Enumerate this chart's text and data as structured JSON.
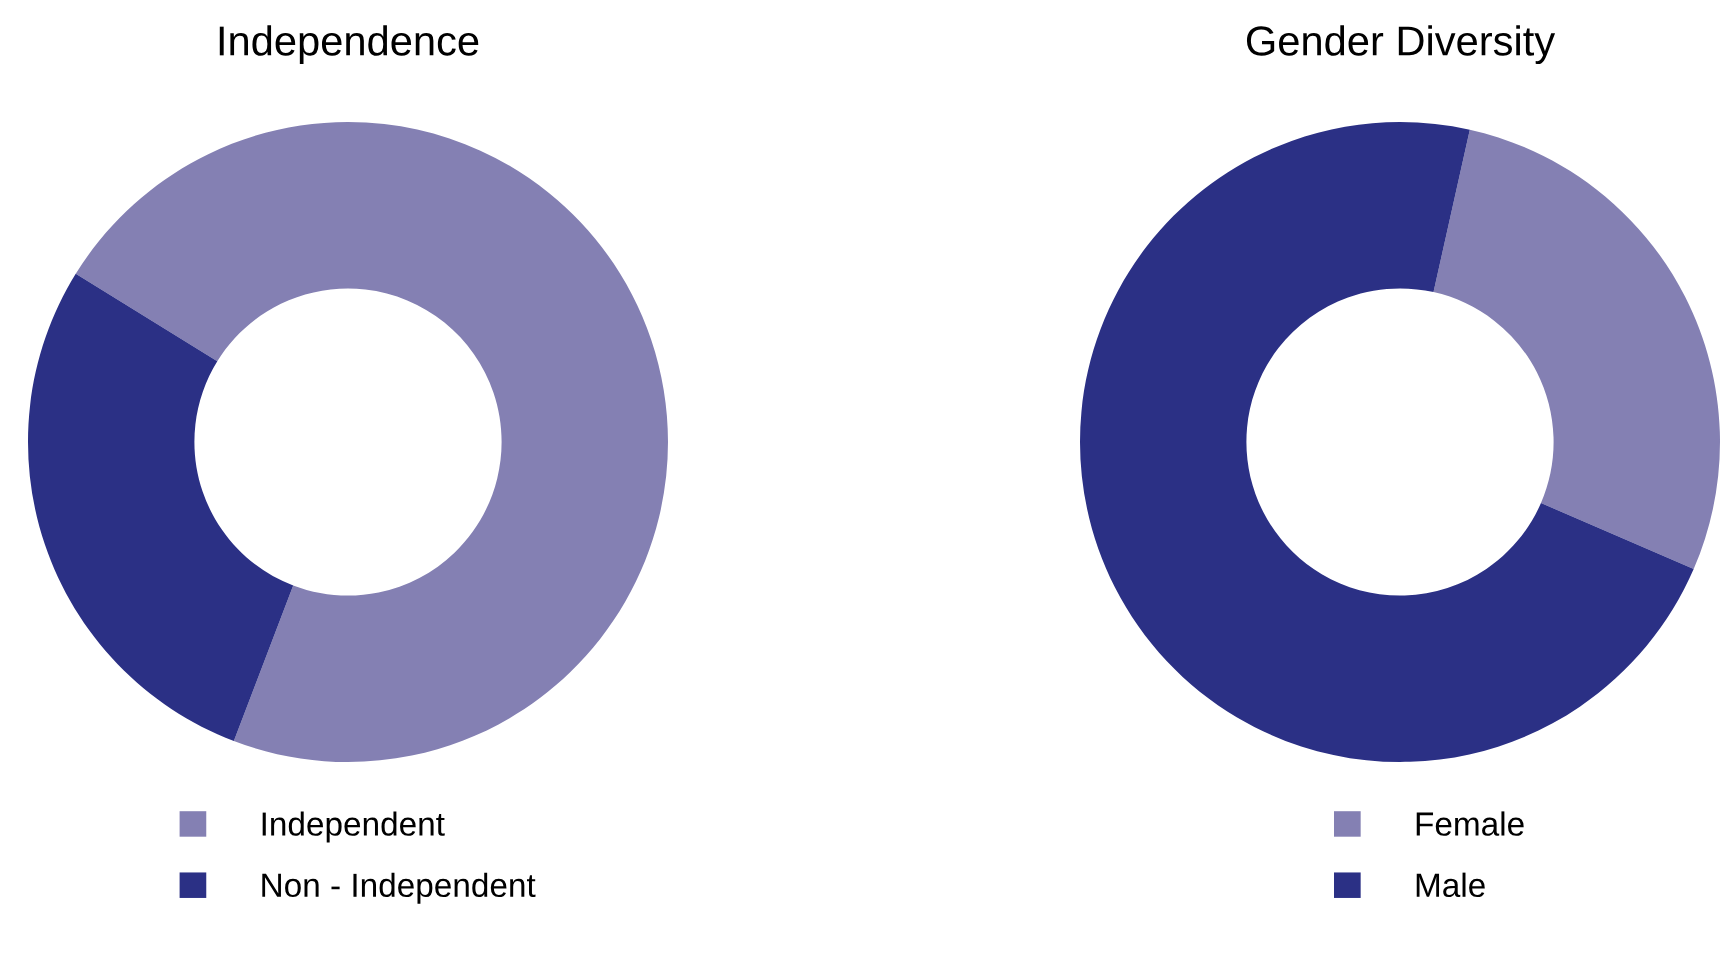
{
  "chart_data": [
    {
      "type": "donut",
      "title": "Independence",
      "categories": [
        "Independent",
        "Non - Independent"
      ],
      "values": [
        72,
        28
      ],
      "colors": [
        "#8480b3",
        "#2b3085"
      ],
      "legend": "bottom"
    },
    {
      "type": "donut",
      "title": "Gender Diversity",
      "categories": [
        "Female",
        "Male"
      ],
      "values": [
        28,
        72
      ],
      "colors": [
        "#8480b3",
        "#2b3085"
      ],
      "legend": "bottom"
    }
  ]
}
